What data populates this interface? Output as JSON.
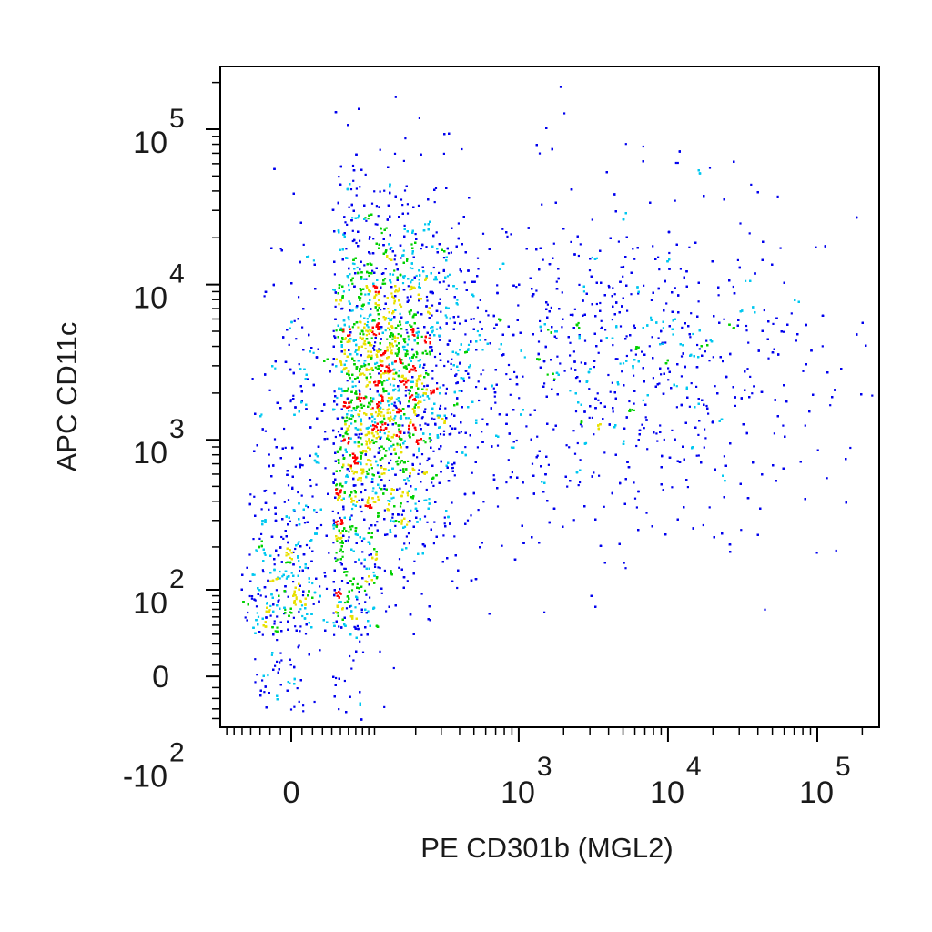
{
  "chart_data": {
    "type": "scatter",
    "style": "flow-cytometry pseudocolor density dot plot",
    "xlabel": "PE CD301b (MGL2)",
    "ylabel": "APC CD11c",
    "x_scale": "biexponential",
    "y_scale": "biexponential",
    "xlim": [
      -300,
      200000
    ],
    "ylim": [
      -130,
      250000
    ],
    "x_ticks": [
      {
        "value": 0,
        "base": "0",
        "sup": ""
      },
      {
        "value": 1000,
        "base": "10",
        "sup": "3"
      },
      {
        "value": 10000,
        "base": "10",
        "sup": "4"
      },
      {
        "value": 100000,
        "base": "10",
        "sup": "5"
      }
    ],
    "y_ticks": [
      {
        "value": -100,
        "base": "-10",
        "sup": "2"
      },
      {
        "value": 0,
        "base": "0",
        "sup": ""
      },
      {
        "value": 100,
        "base": "10",
        "sup": "2"
      },
      {
        "value": 1000,
        "base": "10",
        "sup": "3"
      },
      {
        "value": 10000,
        "base": "10",
        "sup": "4"
      },
      {
        "value": 100000,
        "base": "10",
        "sup": "5"
      }
    ],
    "density_colors": [
      "#0000ee",
      "#00c8f0",
      "#00d000",
      "#e8e000",
      "#ff0000"
    ],
    "populations": [
      {
        "center": [
          120,
          3000
        ],
        "spread_x_decades": 0.28,
        "spread_y_decades": 0.55,
        "weight": 0.46
      },
      {
        "center": [
          30,
          80
        ],
        "spread_x_decades": 0.35,
        "spread_y_decades": 0.35,
        "weight": 0.12
      },
      {
        "center": [
          70,
          500
        ],
        "spread_x_decades": 0.3,
        "spread_y_decades": 0.45,
        "weight": 0.16
      },
      {
        "center": [
          4000,
          3000
        ],
        "spread_x_decades": 0.75,
        "spread_y_decades": 0.55,
        "weight": 0.26
      }
    ],
    "grid": false,
    "legend": "none"
  }
}
